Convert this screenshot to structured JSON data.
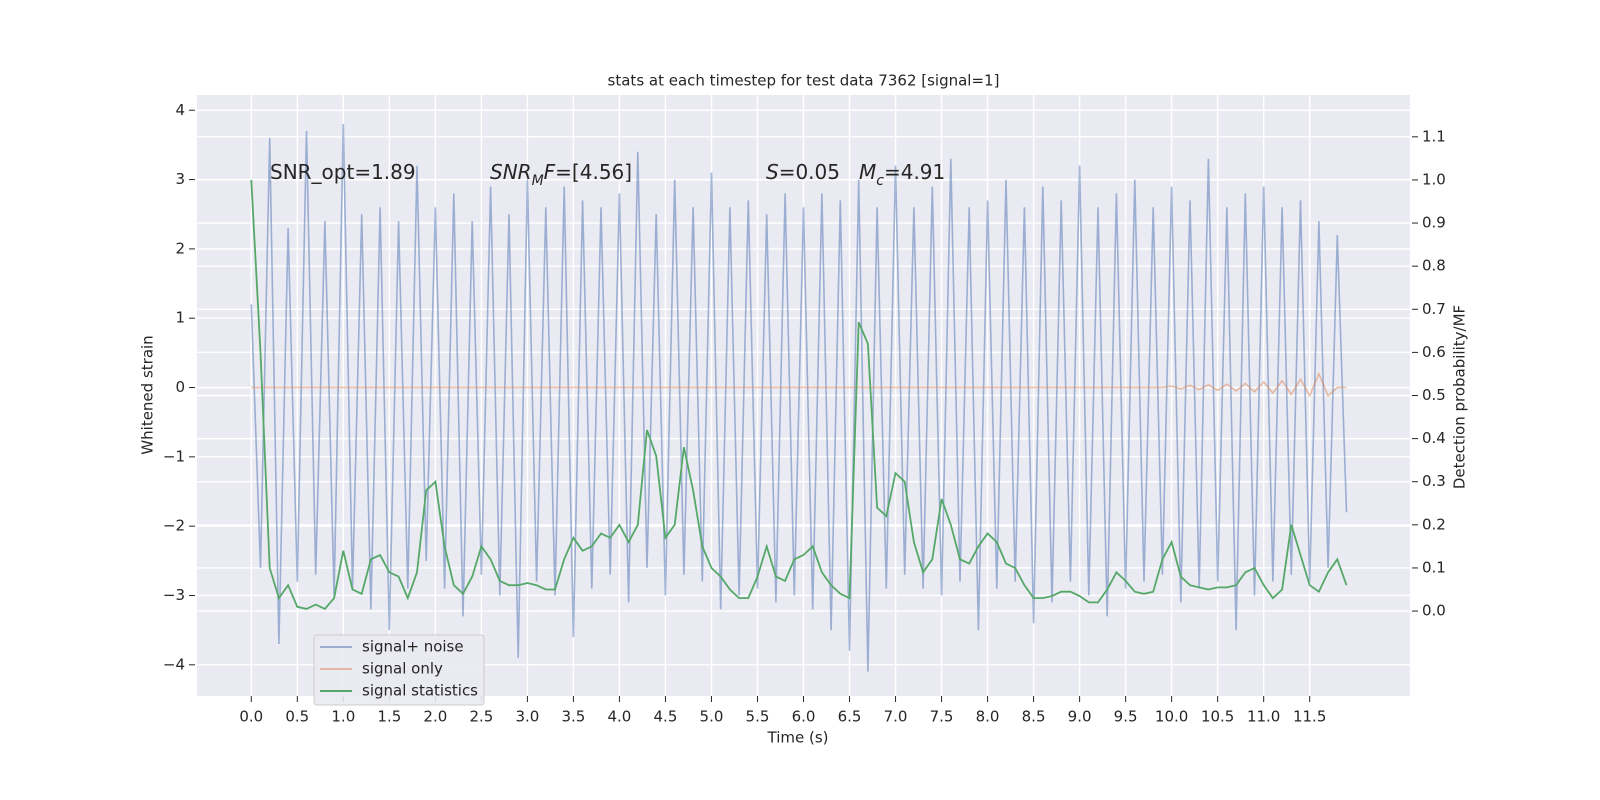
{
  "chart_data": {
    "type": "line",
    "title": "stats at each timestep for test data 7362 [signal=1]",
    "xlabel": "Time (s)",
    "ylabel": "Whitened strain",
    "y2label": "Detection probability/MF",
    "annotations": [
      [
        {
          "text": "SNR_opt=1.89",
          "style": "normal"
        }
      ],
      [
        {
          "text": "SNR",
          "style": "italic"
        },
        {
          "text": "M",
          "style": "sub"
        },
        {
          "text": "F",
          "style": "italic"
        },
        {
          "text": "=[4.56]",
          "style": "normal"
        }
      ],
      [
        {
          "text": "S",
          "style": "italic"
        },
        {
          "text": "=0.05",
          "style": "normal"
        }
      ],
      [
        {
          "text": "M",
          "style": "italic"
        },
        {
          "text": "c",
          "style": "sub"
        },
        {
          "text": "=4.91",
          "style": "normal"
        }
      ]
    ],
    "x": [
      0.0,
      0.1,
      0.2,
      0.3,
      0.4,
      0.5,
      0.6,
      0.7,
      0.8,
      0.9,
      1.0,
      1.1,
      1.2,
      1.3,
      1.4,
      1.5,
      1.6,
      1.7,
      1.8,
      1.9,
      2.0,
      2.1,
      2.2,
      2.3,
      2.4,
      2.5,
      2.6,
      2.7,
      2.8,
      2.9,
      3.0,
      3.1,
      3.2,
      3.3,
      3.4,
      3.5,
      3.6,
      3.7,
      3.8,
      3.9,
      4.0,
      4.1,
      4.2,
      4.3,
      4.4,
      4.5,
      4.6,
      4.7,
      4.8,
      4.9,
      5.0,
      5.1,
      5.2,
      5.3,
      5.4,
      5.5,
      5.6,
      5.7,
      5.8,
      5.9,
      6.0,
      6.1,
      6.2,
      6.3,
      6.4,
      6.5,
      6.6,
      6.7,
      6.8,
      6.9,
      7.0,
      7.1,
      7.2,
      7.3,
      7.4,
      7.5,
      7.6,
      7.7,
      7.8,
      7.9,
      8.0,
      8.1,
      8.2,
      8.3,
      8.4,
      8.5,
      8.6,
      8.7,
      8.8,
      8.9,
      9.0,
      9.1,
      9.2,
      9.3,
      9.4,
      9.5,
      9.6,
      9.7,
      9.8,
      9.9,
      10.0,
      10.1,
      10.2,
      10.3,
      10.4,
      10.5,
      10.6,
      10.7,
      10.8,
      10.9,
      11.0,
      11.1,
      11.2,
      11.3,
      11.4,
      11.5,
      11.6,
      11.7,
      11.8,
      11.9
    ],
    "series": [
      {
        "name": "signal+ noise",
        "color": "rgba(76,114,176,0.5)",
        "axis": "y",
        "values": [
          1.2,
          -2.6,
          3.6,
          -3.7,
          2.3,
          -2.8,
          3.7,
          -2.7,
          2.4,
          -3.0,
          3.8,
          -2.9,
          2.5,
          -3.2,
          2.6,
          -3.5,
          2.4,
          -2.9,
          3.2,
          -2.5,
          2.6,
          -2.9,
          2.8,
          -3.3,
          2.4,
          -2.7,
          2.9,
          -3.0,
          2.5,
          -3.9,
          3.0,
          -2.8,
          2.6,
          -3.0,
          2.9,
          -3.6,
          2.7,
          -2.9,
          2.6,
          -2.7,
          2.8,
          -3.1,
          3.4,
          -2.6,
          2.5,
          -3.0,
          3.0,
          -2.7,
          2.6,
          -2.8,
          3.1,
          -3.2,
          2.6,
          -3.0,
          2.7,
          -2.9,
          2.5,
          -3.1,
          2.8,
          -3.0,
          2.6,
          -3.2,
          2.8,
          -3.5,
          2.7,
          -3.8,
          3.0,
          -4.1,
          2.6,
          -2.9,
          3.2,
          -2.7,
          2.6,
          -2.9,
          2.9,
          -3.0,
          3.3,
          -2.8,
          2.6,
          -3.5,
          2.7,
          -2.9,
          3.0,
          -2.8,
          2.6,
          -3.4,
          2.9,
          -3.1,
          2.7,
          -2.8,
          3.2,
          -3.0,
          2.6,
          -3.3,
          2.8,
          -2.9,
          3.0,
          -2.8,
          2.6,
          -2.7,
          2.9,
          -3.1,
          2.7,
          -2.9,
          3.3,
          -2.8,
          2.6,
          -3.5,
          2.8,
          -3.0,
          2.9,
          -2.8,
          2.6,
          -2.7,
          2.7,
          -2.8,
          2.4,
          -2.6,
          2.2,
          -1.8
        ]
      },
      {
        "name": "signal only",
        "color": "rgba(221,132,82,0.5)",
        "axis": "y",
        "values": [
          0,
          0,
          0,
          0,
          0,
          0,
          0,
          0,
          0,
          0,
          0,
          0,
          0,
          0,
          0,
          0,
          0,
          0,
          0,
          0,
          0,
          0,
          0,
          0,
          0,
          0,
          0,
          0,
          0,
          0,
          0,
          0,
          0,
          0,
          0,
          0,
          0,
          0,
          0,
          0,
          0,
          0,
          0,
          0,
          0,
          0,
          0,
          0,
          0,
          0,
          0,
          0,
          0,
          0,
          0,
          0,
          0,
          0,
          0,
          0,
          0,
          0,
          0,
          0,
          0,
          0,
          0,
          0,
          0,
          0,
          0,
          0,
          0,
          0,
          0,
          0,
          0,
          0,
          0,
          0,
          0,
          0,
          0,
          0,
          0,
          0,
          0,
          0,
          0,
          0,
          0,
          0,
          0,
          0,
          0,
          0,
          0,
          0,
          0,
          0,
          0.02,
          -0.02,
          0.03,
          -0.03,
          0.04,
          -0.04,
          0.05,
          -0.05,
          0.06,
          -0.06,
          0.08,
          -0.08,
          0.1,
          -0.1,
          0.12,
          -0.12,
          0.2,
          -0.12,
          0,
          0
        ]
      },
      {
        "name": "signal statistics",
        "color": "#55a868",
        "axis": "y2",
        "values": [
          1.0,
          0.6,
          0.1,
          0.03,
          0.06,
          0.01,
          0.005,
          0.015,
          0.005,
          0.03,
          0.14,
          0.05,
          0.04,
          0.12,
          0.13,
          0.09,
          0.08,
          0.03,
          0.09,
          0.28,
          0.3,
          0.15,
          0.06,
          0.04,
          0.08,
          0.15,
          0.12,
          0.07,
          0.06,
          0.06,
          0.065,
          0.06,
          0.05,
          0.05,
          0.12,
          0.17,
          0.14,
          0.15,
          0.18,
          0.17,
          0.2,
          0.16,
          0.2,
          0.42,
          0.36,
          0.17,
          0.2,
          0.38,
          0.28,
          0.15,
          0.1,
          0.08,
          0.05,
          0.03,
          0.03,
          0.08,
          0.15,
          0.08,
          0.07,
          0.12,
          0.13,
          0.15,
          0.09,
          0.06,
          0.04,
          0.03,
          0.67,
          0.62,
          0.24,
          0.22,
          0.32,
          0.3,
          0.16,
          0.09,
          0.12,
          0.26,
          0.2,
          0.12,
          0.11,
          0.15,
          0.18,
          0.16,
          0.11,
          0.1,
          0.06,
          0.03,
          0.03,
          0.035,
          0.045,
          0.045,
          0.035,
          0.02,
          0.02,
          0.05,
          0.09,
          0.07,
          0.045,
          0.04,
          0.045,
          0.12,
          0.16,
          0.08,
          0.06,
          0.055,
          0.05,
          0.055,
          0.055,
          0.06,
          0.09,
          0.1,
          0.06,
          0.03,
          0.05,
          0.2,
          0.13,
          0.06,
          0.045,
          0.09,
          0.12,
          0.06
        ]
      }
    ],
    "xlim": [
      -0.59,
      12.59
    ],
    "ylim": [
      -4.45,
      4.22
    ],
    "y2lim": [
      -0.197,
      1.197
    ],
    "xticks": [
      {
        "value": 0,
        "label": "0.0"
      },
      0.5,
      {
        "value": 1,
        "label": "1.0"
      },
      1.5,
      {
        "value": 2,
        "label": "2.0"
      },
      2.5,
      {
        "value": 3,
        "label": "3.0"
      },
      3.5,
      {
        "value": 4,
        "label": "4.0"
      },
      4.5,
      {
        "value": 5,
        "label": "5.0"
      },
      5.5,
      {
        "value": 6,
        "label": "6.0"
      },
      6.5,
      {
        "value": 7,
        "label": "7.0"
      },
      7.5,
      {
        "value": 8,
        "label": "8.0"
      },
      8.5,
      {
        "value": 9,
        "label": "9.0"
      },
      9.5,
      {
        "value": 10,
        "label": "10.0"
      },
      10.5,
      {
        "value": 11,
        "label": "11.0"
      },
      11.5
    ],
    "yticks": [
      {
        "value": -4,
        "label": "−4"
      },
      {
        "value": -3,
        "label": "−3"
      },
      {
        "value": -2,
        "label": "−2"
      },
      {
        "value": -1,
        "label": "−1"
      },
      0,
      1,
      2,
      3,
      4
    ],
    "y2ticks": [
      {
        "value": 0,
        "label": "0.0"
      },
      0.1,
      0.2,
      0.3,
      0.4,
      0.5,
      0.6,
      0.7,
      0.8,
      0.9,
      {
        "value": 1,
        "label": "1.0"
      },
      1.1
    ],
    "grid": true,
    "legend": "lower left"
  }
}
